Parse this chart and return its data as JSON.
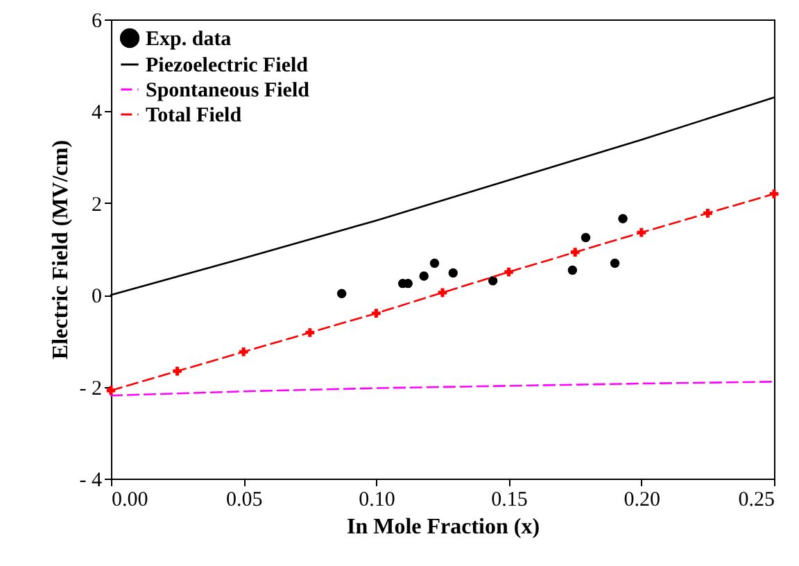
{
  "chart_data": {
    "type": "line",
    "xlabel": "In Mole Fraction (x)",
    "ylabel": "Electric Field (MV/cm)",
    "xlim": [
      0,
      0.25
    ],
    "xticks": [
      {
        "value": 0,
        "label": "0.00"
      },
      {
        "value": 0.05,
        "label": "0.05"
      },
      {
        "value": 0.1,
        "label": "0.10"
      },
      {
        "value": 0.15,
        "label": "0.15"
      },
      {
        "value": 0.2,
        "label": "0.20"
      },
      {
        "value": 0.25,
        "label": "0.25"
      }
    ],
    "ylim": [
      -4,
      6
    ],
    "yticks": [
      {
        "value": -4,
        "label": "- 4"
      },
      {
        "value": -2,
        "label": "- 2"
      },
      0,
      2,
      4,
      6
    ],
    "legend": "top left",
    "grid": false,
    "series": [
      {
        "name": "Exp. data",
        "type": "scatter",
        "marker": "circle",
        "color": "#000000",
        "x": [
          0.087,
          0.11,
          0.112,
          0.118,
          0.122,
          0.129,
          0.144,
          0.174,
          0.179,
          0.19,
          0.193
        ],
        "values": [
          0.03,
          0.25,
          0.25,
          0.41,
          0.69,
          0.48,
          0.31,
          0.54,
          1.25,
          0.69,
          1.66
        ]
      },
      {
        "name": "Piezoelectric Field",
        "line_style": "solid",
        "marker": "none",
        "color": "#000000",
        "x": [
          0,
          0.05,
          0.1,
          0.15,
          0.2,
          0.25
        ],
        "values": [
          0,
          0.8,
          1.62,
          2.5,
          3.38,
          4.3
        ]
      },
      {
        "name": "Spontaneous Field",
        "line_style": "dashed",
        "marker": "none",
        "color": "#ff00ff",
        "x": [
          0,
          0.05,
          0.1,
          0.15,
          0.2,
          0.25
        ],
        "values": [
          -2.19,
          -2.1,
          -2.03,
          -1.98,
          -1.93,
          -1.89
        ]
      },
      {
        "name": "Total Field",
        "line_style": "dashed",
        "marker": "cross",
        "color": "#ff0000",
        "x": [
          0,
          0.025,
          0.05,
          0.075,
          0.1,
          0.125,
          0.15,
          0.175,
          0.2,
          0.225,
          0.25
        ],
        "values": [
          -2.08,
          -1.66,
          -1.24,
          -0.82,
          -0.4,
          0.05,
          0.5,
          0.93,
          1.36,
          1.78,
          2.2
        ]
      }
    ]
  }
}
